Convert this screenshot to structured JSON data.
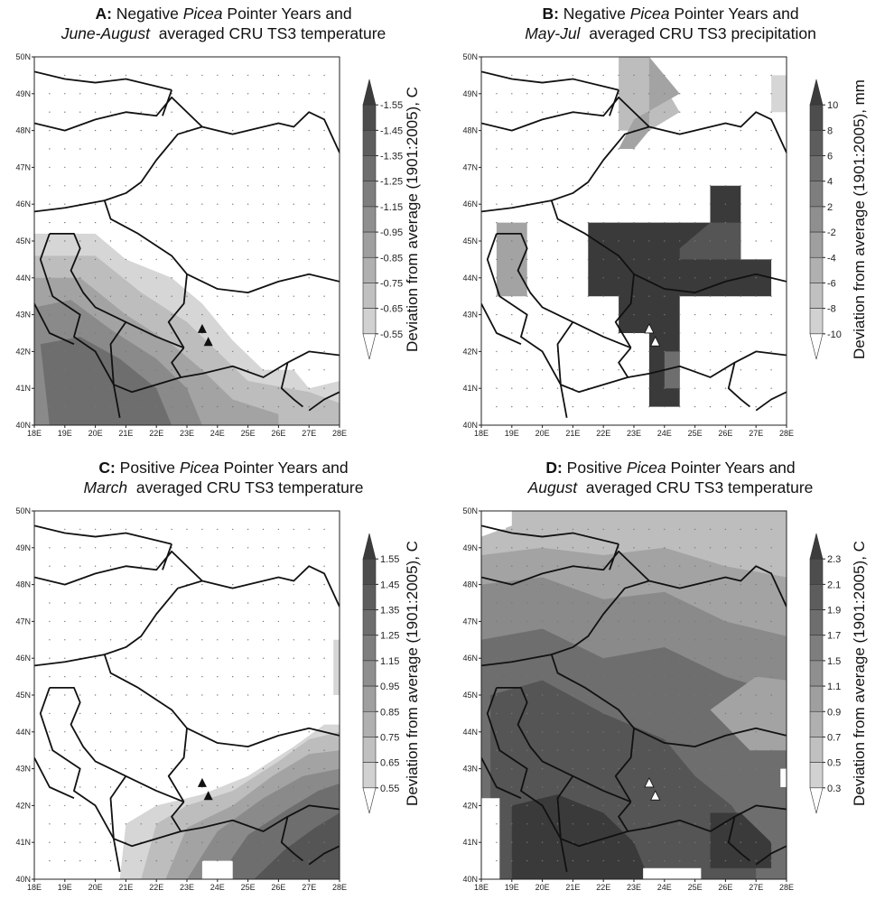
{
  "chart_data": [
    {
      "panel": "A",
      "type": "heatmap",
      "title_letter": "A:",
      "title_line1": "Negative",
      "title_taxon": "Picea",
      "title_line1_rest": "Pointer Years and",
      "title_line2_italic": "June-August",
      "title_line2_rest": "averaged CRU TS3 temperature",
      "colorbar_label": "Deviation from average (1901:2005), C",
      "colorbar_ticks": [
        "-1.55",
        "-1.45",
        "-1.35",
        "-1.25",
        "-1.15",
        "-0.95",
        "-0.85",
        "-0.75",
        "-0.65",
        "-0.55"
      ],
      "marker_color": "#111111",
      "x_ticks": [
        "18E",
        "19E",
        "20E",
        "21E",
        "22E",
        "23E",
        "24E",
        "25E",
        "26E",
        "27E",
        "28E"
      ],
      "y_ticks": [
        "40N",
        "41N",
        "42N",
        "43N",
        "44N",
        "45N",
        "46N",
        "47N",
        "48N",
        "49N",
        "50N"
      ],
      "xlim": [
        18,
        28
      ],
      "ylim": [
        40,
        50
      ]
    },
    {
      "panel": "B",
      "type": "heatmap",
      "title_letter": "B:",
      "title_line1": "Negative",
      "title_taxon": "Picea",
      "title_line1_rest": "Pointer Years and",
      "title_line2_italic": "May-Jul",
      "title_line2_rest": "averaged CRU TS3 precipitation",
      "colorbar_label": "Deviation from average (1901:2005), mm",
      "colorbar_ticks": [
        "10",
        "8",
        "6",
        "4",
        "2",
        "-2",
        "-4",
        "-6",
        "-8",
        "-10"
      ],
      "marker_color": "#ffffff",
      "x_ticks": [
        "18E",
        "19E",
        "20E",
        "21E",
        "22E",
        "23E",
        "24E",
        "25E",
        "26E",
        "27E",
        "28E"
      ],
      "y_ticks": [
        "40N",
        "41N",
        "42N",
        "43N",
        "44N",
        "45N",
        "46N",
        "47N",
        "48N",
        "49N",
        "50N"
      ],
      "xlim": [
        18,
        28
      ],
      "ylim": [
        40,
        50
      ]
    },
    {
      "panel": "C",
      "type": "heatmap",
      "title_letter": "C:",
      "title_line1": "Positive",
      "title_taxon": "Picea",
      "title_line1_rest": "Pointer Years and",
      "title_line2_italic": "March",
      "title_line2_rest": "averaged CRU TS3 temperature",
      "colorbar_label": "Deviation from average (1901:2005), C",
      "colorbar_ticks": [
        "1.55",
        "1.45",
        "1.35",
        "1.25",
        "1.15",
        "0.95",
        "0.85",
        "0.75",
        "0.65",
        "0.55"
      ],
      "marker_color": "#111111",
      "x_ticks": [
        "18E",
        "19E",
        "20E",
        "21E",
        "22E",
        "23E",
        "24E",
        "25E",
        "26E",
        "27E",
        "28E"
      ],
      "y_ticks": [
        "40N",
        "41N",
        "42N",
        "43N",
        "44N",
        "45N",
        "46N",
        "47N",
        "48N",
        "49N",
        "50N"
      ],
      "xlim": [
        18,
        28
      ],
      "ylim": [
        40,
        50
      ]
    },
    {
      "panel": "D",
      "type": "heatmap",
      "title_letter": "D:",
      "title_line1": "Positive",
      "title_taxon": "Picea",
      "title_line1_rest": "Pointer Years and",
      "title_line2_italic": "August",
      "title_line2_rest": "averaged CRU TS3 temperature",
      "colorbar_label": "Deviation from average (1901:2005), C",
      "colorbar_ticks": [
        "2.3",
        "2.1",
        "1.9",
        "1.7",
        "1.5",
        "1.1",
        "0.9",
        "0.7",
        "0.5",
        "0.3"
      ],
      "marker_color": "#ffffff",
      "x_ticks": [
        "18E",
        "19E",
        "20E",
        "21E",
        "22E",
        "23E",
        "24E",
        "25E",
        "26E",
        "27E",
        "28E"
      ],
      "y_ticks": [
        "40N",
        "41N",
        "42N",
        "43N",
        "44N",
        "45N",
        "46N",
        "47N",
        "48N",
        "49N",
        "50N"
      ],
      "xlim": [
        18,
        28
      ],
      "ylim": [
        40,
        50
      ]
    }
  ],
  "colors": {
    "darkest": "#3a3a3a",
    "dark": "#555555",
    "mid_dark": "#6e6e6e",
    "mid": "#8a8a8a",
    "mid_light": "#a3a3a3",
    "light": "#bdbdbd",
    "lightest": "#d6d6d6",
    "border": "#111111"
  }
}
